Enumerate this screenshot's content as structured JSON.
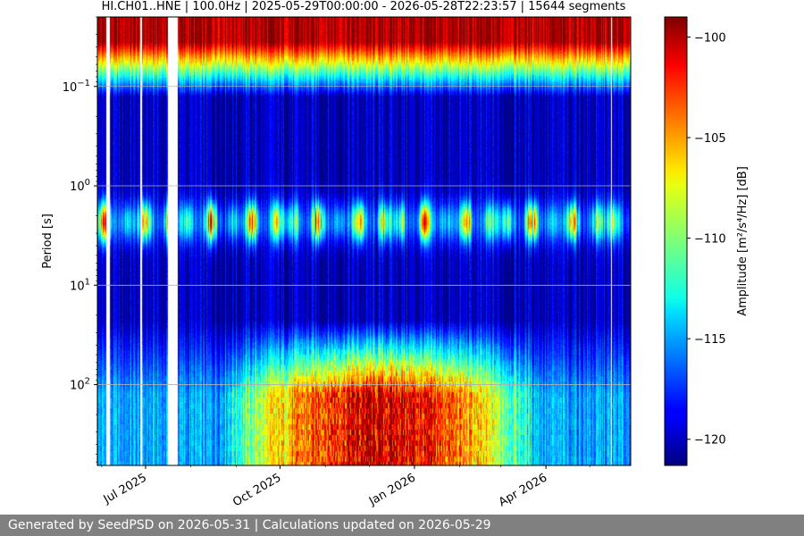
{
  "chart_data": {
    "type": "heatmap",
    "title": "HI.CH01..HNE | 100.0Hz | 2025-05-29T00:00:00 - 2026-05-28T22:23:57 | 15644 segments",
    "xlabel": "",
    "ylabel": "Period [s]",
    "x_range": [
      "2025-05-29",
      "2026-05-28"
    ],
    "x_ticks": [
      {
        "date": "2025-07-01",
        "label": "Jul 2025"
      },
      {
        "date": "2025-10-01",
        "label": "Oct 2025"
      },
      {
        "date": "2026-01-01",
        "label": "Jan 2026"
      },
      {
        "date": "2026-04-01",
        "label": "Apr 2026"
      }
    ],
    "y_scale": "log",
    "y_inverted": true,
    "y_range": [
      0.02,
      650
    ],
    "y_ticks": [
      {
        "value": 0.1,
        "base": "10",
        "exp": "−1"
      },
      {
        "value": 1,
        "base": "10",
        "exp": "0"
      },
      {
        "value": 10,
        "base": "10",
        "exp": "1"
      },
      {
        "value": 100,
        "base": "10",
        "exp": "2"
      }
    ],
    "grid": true,
    "colormap": "jet",
    "colorbar": {
      "label": "Amplitude [m²/s⁴/Hz] [dB]",
      "range": [
        -121.3,
        -99.0
      ],
      "ticks": [
        -100,
        -105,
        -110,
        -115,
        -120
      ],
      "tick_labels": [
        "−100",
        "−105",
        "−110",
        "−115",
        "−120"
      ]
    },
    "data_gaps": [
      [
        "2025-06-04",
        "2025-06-06"
      ],
      [
        "2025-06-27",
        "2025-06-28"
      ],
      [
        "2025-07-16",
        "2025-07-23"
      ],
      [
        "2026-05-15",
        "2026-05-16"
      ]
    ],
    "pattern": {
      "short_period_band_db": -100,
      "secondary_microseism_period_s": [
        1.5,
        3.5
      ],
      "secondary_microseism_db": [
        -116,
        -103
      ],
      "long_period_db_summer": -115,
      "long_period_db_winter": -101,
      "background_db": -120
    }
  },
  "footer": {
    "text": "Generated by SeedPSD on 2026-05-31 | Calculations updated on 2026-05-29"
  }
}
